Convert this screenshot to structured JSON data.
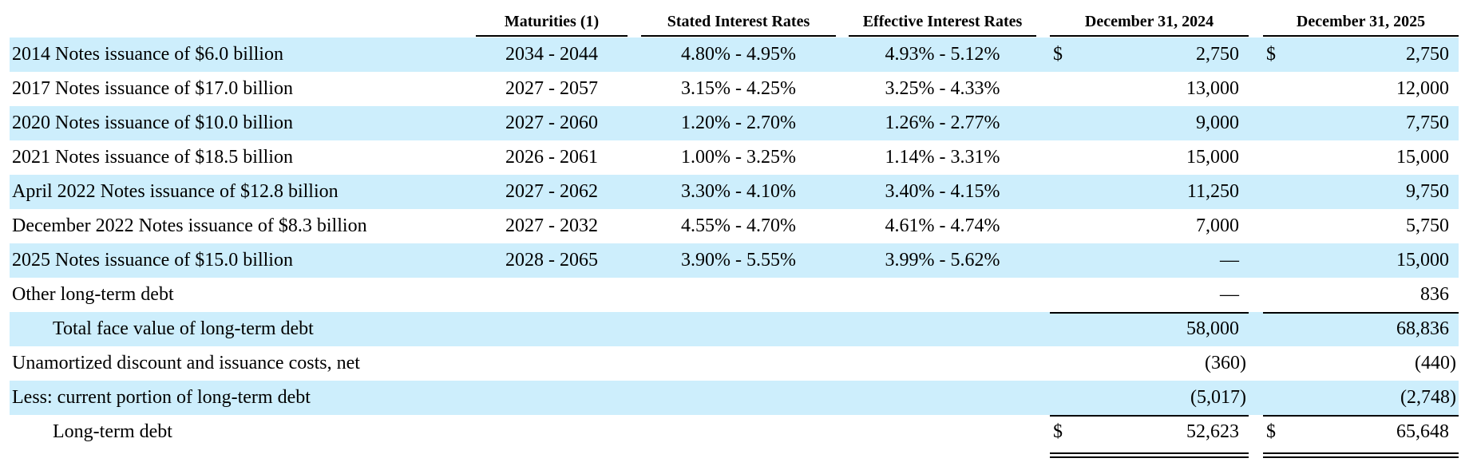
{
  "table": {
    "headers": [
      "Maturities (1)",
      "Stated Interest Rates",
      "Effective Interest Rates",
      "December 31, 2024",
      "December 31, 2025"
    ],
    "rows": [
      {
        "label": "2014 Notes issuance of $6.0 billion",
        "maturities": "2034 - 2044",
        "stated": "4.80% - 4.95%",
        "effective": "4.93% - 5.12%",
        "currency_2024": "$",
        "y2024": "2,750",
        "currency_2025": "$",
        "y2025": "2,750"
      },
      {
        "label": "2017 Notes issuance of $17.0 billion",
        "maturities": "2027 - 2057",
        "stated": "3.15% - 4.25%",
        "effective": "3.25% - 4.33%",
        "y2024": "13,000",
        "y2025": "12,000"
      },
      {
        "label": "2020 Notes issuance of $10.0 billion",
        "maturities": "2027 - 2060",
        "stated": "1.20% - 2.70%",
        "effective": "1.26% - 2.77%",
        "y2024": "9,000",
        "y2025": "7,750"
      },
      {
        "label": "2021 Notes issuance of $18.5 billion",
        "maturities": "2026 - 2061",
        "stated": "1.00% - 3.25%",
        "effective": "1.14% - 3.31%",
        "y2024": "15,000",
        "y2025": "15,000"
      },
      {
        "label": "April 2022 Notes issuance of $12.8 billion",
        "maturities": "2027 - 2062",
        "stated": "3.30% - 4.10%",
        "effective": "3.40% - 4.15%",
        "y2024": "11,250",
        "y2025": "9,750"
      },
      {
        "label": "December 2022 Notes issuance of $8.3 billion",
        "maturities": "2027 - 2032",
        "stated": "4.55% - 4.70%",
        "effective": "4.61% - 4.74%",
        "y2024": "7,000",
        "y2025": "5,750"
      },
      {
        "label": "2025 Notes issuance of $15.0 billion",
        "maturities": "2028 - 2065",
        "stated": "3.90% - 5.55%",
        "effective": "3.99% - 5.62%",
        "y2024": "—",
        "y2025": "15,000"
      },
      {
        "label": "Other long-term debt",
        "y2024": "—",
        "y2025": "836"
      },
      {
        "label": "Total face value of long-term debt",
        "y2024": "58,000",
        "y2025": "68,836"
      },
      {
        "label": "Unamortized discount and issuance costs, net",
        "y2024": "(360)",
        "y2025": "(440)"
      },
      {
        "label": "Less: current portion of long-term debt",
        "y2024": "(5,017)",
        "y2025": "(2,748)"
      },
      {
        "label": "Long-term debt",
        "currency_2024": "$",
        "y2024": "52,623",
        "currency_2025": "$",
        "y2025": "65,648"
      }
    ]
  }
}
